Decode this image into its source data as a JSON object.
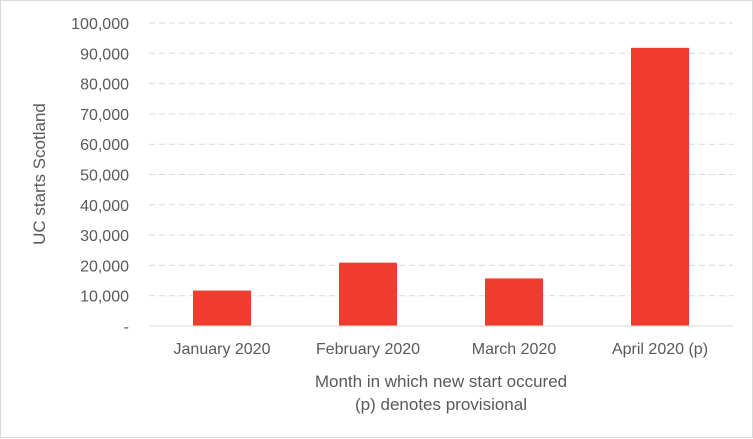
{
  "chart_data": {
    "type": "bar",
    "title": "",
    "categories": [
      "January 2020",
      "February 2020",
      "March 2020",
      "April 2020 (p)"
    ],
    "values": [
      11700,
      20900,
      15700,
      91800
    ],
    "ylabel": "UC starts Scotland",
    "xlabel_lines": [
      "Month in which new start occured",
      "(p) denotes provisional"
    ],
    "ylim": [
      0,
      100000
    ],
    "yticks": [
      0,
      10000,
      20000,
      30000,
      40000,
      50000,
      60000,
      70000,
      80000,
      90000,
      100000
    ],
    "ytick_labels": [
      "-",
      "10,000",
      "20,000",
      "30,000",
      "40,000",
      "50,000",
      "60,000",
      "70,000",
      "80,000",
      "90,000",
      "100,000"
    ],
    "grid": true,
    "legend": "none",
    "bar_color": "#f03c2e"
  }
}
